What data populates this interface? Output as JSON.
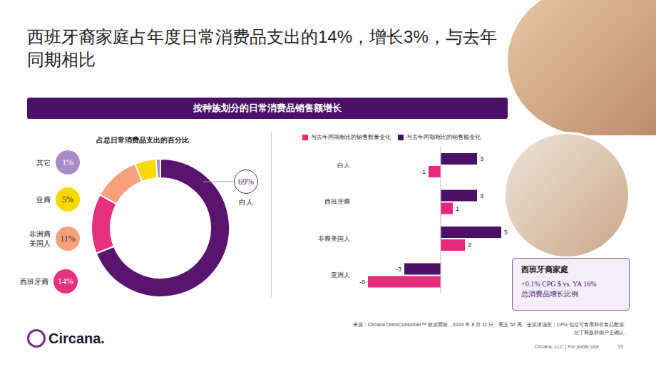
{
  "title": "西班牙裔家庭占年度日常消费品支出的14%，增长3%，与去年同期相比",
  "banner": "按种族划分的日常消费品销售额增长",
  "chart_data": [
    {
      "type": "donut",
      "title": "占总日常消费品支出的百分比",
      "categories": [
        "白人",
        "西班牙裔",
        "非洲裔美国人",
        "亚裔",
        "其它"
      ],
      "values": [
        69,
        14,
        11,
        5,
        1
      ],
      "value_labels": [
        "69%",
        "14%",
        "11%",
        "5%",
        "1%"
      ],
      "colors": [
        "#5a1470",
        "#e62f7e",
        "#f7a07c",
        "#f9d800",
        "#a88bc7"
      ],
      "data_labels": true
    },
    {
      "type": "bar",
      "orientation": "horizontal",
      "categories": [
        "白人",
        "西班牙裔",
        "非裔美国人",
        "亚洲人"
      ],
      "series": [
        {
          "name": "与去年同期相比的销售额变化",
          "color": "#4b1169",
          "values": [
            3,
            3,
            5,
            -3
          ]
        },
        {
          "name": "与去年同期相比的销售数量变化",
          "color": "#e8287a",
          "values": [
            -1,
            1,
            2,
            -6
          ]
        }
      ],
      "xlim": [
        -7,
        6
      ],
      "data_labels": true,
      "tick_labels": "y",
      "legend": "top left"
    }
  ],
  "callout": {
    "title": "西班牙裔家庭",
    "body": [
      "+0.1% CPG $ vs. YA 16%",
      "总消费品增长比例"
    ]
  },
  "source": [
    "来源：Circana OmniConsumer™ 收据面板，2024 年 8 月 11 日，周五 52 周。全渠道场所；CPG 包括可食用和非食品数据。",
    "拉丁裔族群由户主确认。"
  ],
  "footer": "Circana, LLC | For public use",
  "page": "15",
  "logo": "Circana."
}
